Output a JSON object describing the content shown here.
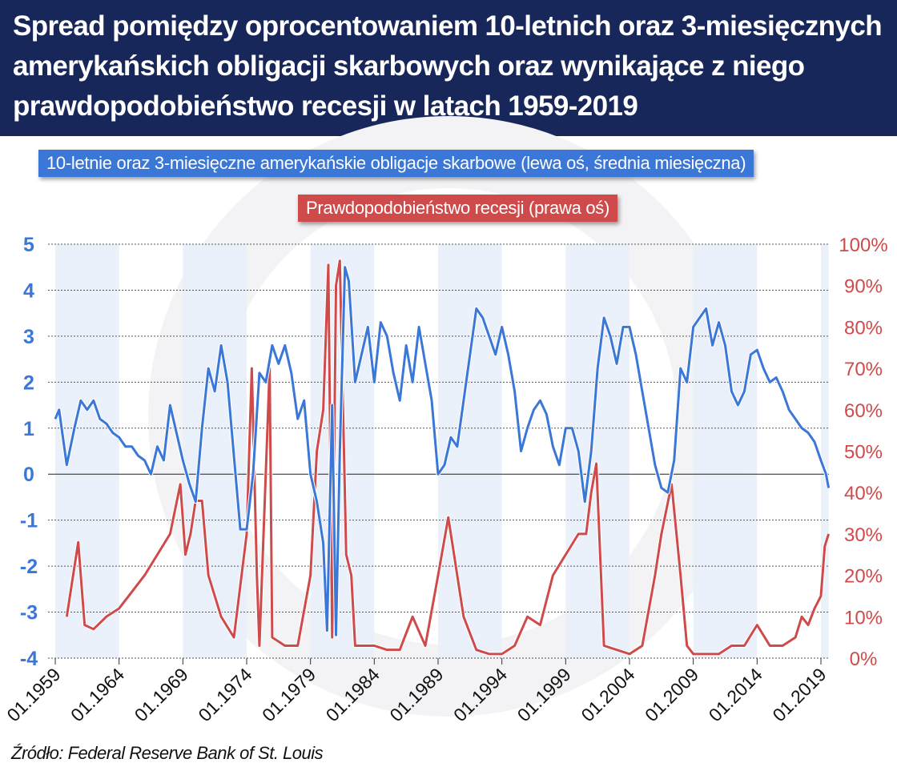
{
  "title": "Spread pomiędzy oprocentowaniem 10-letnich oraz 3-miesięcznych amerykańskich obligacji skarbowych oraz wynikające z niego prawdopodobieństwo recesji w latach 1959-2019",
  "source": "Źródło: Federal Reserve Bank of St. Louis",
  "colors": {
    "header": "#18275a",
    "spread": "#3a77d6",
    "probability": "#cf4a4a",
    "band": "#e6eefa"
  },
  "chart_data": {
    "type": "line",
    "title": "Spread pomiędzy oprocentowaniem 10-letnich oraz 3-miesięcznych amerykańskich obligacji skarbowych oraz wynikające z niego prawdopodobieństwo recesji w latach 1959-2019",
    "x_tick_labels": [
      "01.1959",
      "01.1964",
      "01.1969",
      "01.1974",
      "01.1979",
      "01.1984",
      "01.1989",
      "01.1994",
      "01.1999",
      "01.2004",
      "01.2009",
      "01.2014",
      "01.2019"
    ],
    "x_ticks": [
      1959,
      1964,
      1969,
      1974,
      1979,
      1984,
      1989,
      1994,
      1999,
      2004,
      2009,
      2014,
      2019
    ],
    "xlim": [
      1959,
      2019.6
    ],
    "y_left": {
      "ylim": [
        -4,
        5
      ],
      "ticks": [
        "5",
        "4",
        "3",
        "2",
        "1",
        "0",
        "-1",
        "-2",
        "-3",
        "-4"
      ]
    },
    "y_right": {
      "ylim": [
        0,
        100
      ],
      "ticks": [
        "100%",
        "90%",
        "80%",
        "70%",
        "60%",
        "50%",
        "40%",
        "30%",
        "20%",
        "10%",
        "0%"
      ]
    },
    "grid": "horizontal dotted",
    "shaded_periods": [
      [
        1959,
        1964
      ],
      [
        1969,
        1974
      ],
      [
        1979,
        1984
      ],
      [
        1989,
        1994
      ],
      [
        1999,
        2004
      ],
      [
        2009,
        2014
      ],
      [
        2019,
        2019.6
      ]
    ],
    "series": [
      {
        "name": "10-letnie oraz 3-miesięczne amerykańskie obligacje skarbowe (lewa oś, średnia miesięczna)",
        "axis": "left",
        "x": [
          1959,
          1959.3,
          1959.9,
          1960.5,
          1961,
          1961.5,
          1962,
          1962.5,
          1963,
          1963.5,
          1964,
          1964.5,
          1965,
          1965.5,
          1966,
          1966.5,
          1967,
          1967.5,
          1968,
          1968.5,
          1969,
          1969.5,
          1970,
          1970.5,
          1971,
          1971.5,
          1972,
          1972.5,
          1973,
          1973.5,
          1974,
          1974.5,
          1975,
          1975.5,
          1976,
          1976.5,
          1977,
          1977.5,
          1978,
          1978.5,
          1979,
          1979.5,
          1980,
          1980.3,
          1980.7,
          1981,
          1981.3,
          1981.7,
          1982,
          1982.5,
          1983,
          1983.5,
          1984,
          1984.5,
          1985,
          1985.5,
          1986,
          1986.5,
          1987,
          1987.5,
          1988,
          1988.5,
          1989,
          1989.5,
          1990,
          1990.5,
          1991,
          1991.5,
          1992,
          1992.5,
          1993,
          1993.5,
          1994,
          1994.5,
          1995,
          1995.5,
          1996,
          1996.5,
          1997,
          1997.5,
          1998,
          1998.5,
          1999,
          1999.5,
          2000,
          2000.5,
          2001,
          2001.5,
          2002,
          2002.5,
          2003,
          2003.5,
          2004,
          2004.5,
          2005,
          2005.5,
          2006,
          2006.5,
          2007,
          2007.5,
          2008,
          2008.5,
          2009,
          2009.5,
          2010,
          2010.5,
          2011,
          2011.5,
          2012,
          2012.5,
          2013,
          2013.5,
          2014,
          2014.5,
          2015,
          2015.5,
          2016,
          2016.5,
          2017,
          2017.5,
          2018,
          2018.5,
          2019,
          2019.4,
          2019.6
        ],
        "y": [
          1.2,
          1.4,
          0.2,
          1.0,
          1.6,
          1.4,
          1.6,
          1.2,
          1.1,
          0.9,
          0.8,
          0.6,
          0.6,
          0.4,
          0.3,
          0.0,
          0.6,
          0.3,
          1.5,
          0.9,
          0.3,
          -0.2,
          -0.6,
          1.0,
          2.3,
          1.8,
          2.8,
          2.0,
          0.4,
          -1.2,
          -1.2,
          0.0,
          2.2,
          2.0,
          2.8,
          2.4,
          2.8,
          2.2,
          1.2,
          1.6,
          0.0,
          -0.6,
          -1.5,
          -3.4,
          1.5,
          -3.5,
          0.5,
          4.5,
          4.2,
          2.0,
          2.6,
          3.2,
          2.0,
          3.3,
          3.0,
          2.2,
          1.6,
          2.8,
          2.0,
          3.2,
          2.4,
          1.6,
          0.0,
          0.2,
          0.8,
          0.6,
          1.6,
          2.6,
          3.6,
          3.4,
          3.0,
          2.6,
          3.2,
          2.6,
          1.8,
          0.5,
          1.0,
          1.4,
          1.6,
          1.3,
          0.6,
          0.2,
          1.0,
          1.0,
          0.5,
          -0.6,
          0.5,
          2.3,
          3.4,
          3.0,
          2.4,
          3.2,
          3.2,
          2.6,
          1.8,
          1.0,
          0.2,
          -0.3,
          -0.4,
          0.3,
          2.3,
          2.0,
          3.2,
          3.4,
          3.6,
          2.8,
          3.3,
          2.8,
          1.8,
          1.5,
          1.8,
          2.6,
          2.7,
          2.3,
          2.0,
          2.1,
          1.8,
          1.4,
          1.2,
          1.0,
          0.9,
          0.7,
          0.3,
          0.0,
          -0.3
        ]
      },
      {
        "name": "Prawdopodobieństwo recesji (prawa oś)",
        "axis": "right",
        "x": [
          1959.9,
          1960.8,
          1961.3,
          1962,
          1963,
          1964,
          1965,
          1966,
          1967,
          1968,
          1968.8,
          1969.2,
          1969.6,
          1970,
          1970.5,
          1971,
          1972,
          1973,
          1974,
          1974.4,
          1974.8,
          1975,
          1975.8,
          1976,
          1977,
          1978,
          1979,
          1979.5,
          1980,
          1980.4,
          1980.7,
          1981,
          1981.3,
          1981.8,
          1982.2,
          1982.5,
          1984,
          1985,
          1986,
          1987,
          1988,
          1989,
          1989.8,
          1990.5,
          1991,
          1992,
          1993,
          1994,
          1995,
          1996,
          1997,
          1998,
          1999,
          2000,
          2000.6,
          2001,
          2001.4,
          2002,
          2003,
          2004,
          2005,
          2006,
          2006.5,
          2007.3,
          2008,
          2008.5,
          2009,
          2010,
          2011,
          2012,
          2013,
          2014,
          2015,
          2016,
          2017,
          2017.5,
          2018,
          2018.5,
          2019,
          2019.3,
          2019.6
        ],
        "y": [
          10,
          28,
          8,
          7,
          10,
          12,
          16,
          20,
          25,
          30,
          42,
          25,
          30,
          38,
          38,
          20,
          10,
          5,
          30,
          70,
          20,
          3,
          70,
          5,
          3,
          3,
          20,
          50,
          60,
          95,
          5,
          90,
          96,
          25,
          20,
          3,
          3,
          2,
          2,
          10,
          3,
          20,
          34,
          20,
          10,
          2,
          1,
          1,
          3,
          10,
          8,
          20,
          25,
          30,
          30,
          40,
          47,
          3,
          2,
          1,
          3,
          20,
          30,
          42,
          20,
          3,
          1,
          1,
          1,
          3,
          3,
          8,
          3,
          3,
          5,
          10,
          8,
          12,
          15,
          27,
          30
        ]
      }
    ]
  }
}
